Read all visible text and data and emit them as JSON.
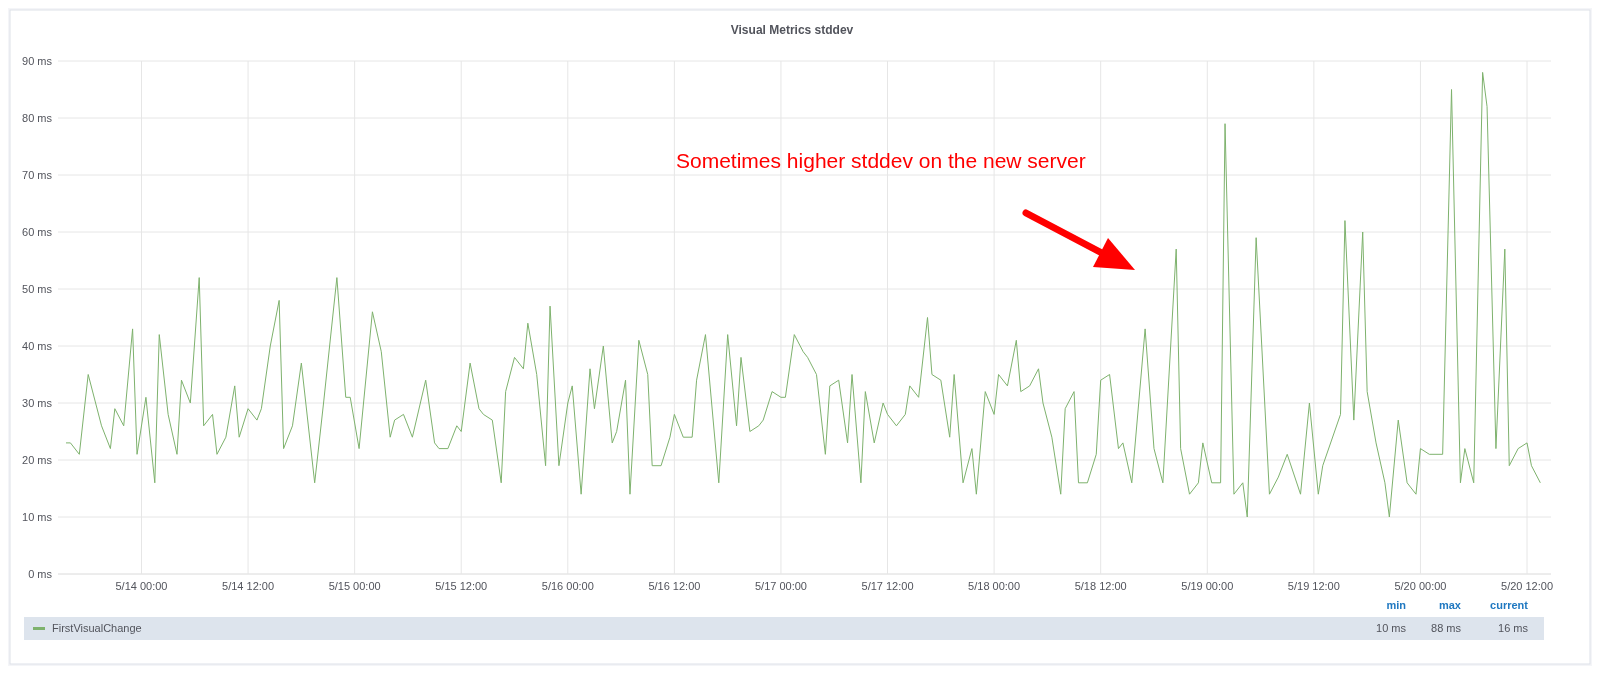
{
  "chart_data": {
    "type": "line",
    "title": "Visual Metrics stddev",
    "xlim": [
      "--05-13T14:36",
      "--05-20T14:42"
    ],
    "xticks": [
      {
        "value": "--05-14T00:00",
        "label": "5/14 00:00"
      },
      {
        "value": "--05-14T12:00",
        "label": "5/14 12:00"
      },
      {
        "value": "--05-15T00:00",
        "label": "5/15 00:00"
      },
      {
        "value": "--05-15T12:00",
        "label": "5/15 12:00"
      },
      {
        "value": "--05-16T00:00",
        "label": "5/16 00:00"
      },
      {
        "value": "--05-16T12:00",
        "label": "5/16 12:00"
      },
      {
        "value": "--05-17T00:00",
        "label": "5/17 00:00"
      },
      {
        "value": "--05-17T12:00",
        "label": "5/17 12:00"
      },
      {
        "value": "--05-18T00:00",
        "label": "5/18 00:00"
      },
      {
        "value": "--05-18T12:00",
        "label": "5/18 12:00"
      },
      {
        "value": "--05-19T00:00",
        "label": "5/19 00:00"
      },
      {
        "value": "--05-19T12:00",
        "label": "5/19 12:00"
      },
      {
        "value": "--05-20T00:00",
        "label": "5/20 00:00"
      },
      {
        "value": "--05-20T12:00",
        "label": "5/20 12:00"
      }
    ],
    "ylim": [
      0,
      90
    ],
    "yticks": [
      {
        "value": 0,
        "label": "0 ms"
      },
      {
        "value": 10,
        "label": "10 ms"
      },
      {
        "value": 20,
        "label": "20 ms"
      },
      {
        "value": 30,
        "label": "30 ms"
      },
      {
        "value": 40,
        "label": "40 ms"
      },
      {
        "value": 50,
        "label": "50 ms"
      },
      {
        "value": 60,
        "label": "60 ms"
      },
      {
        "value": 70,
        "label": "70 ms"
      },
      {
        "value": 80,
        "label": "80 ms"
      },
      {
        "value": 90,
        "label": "90 ms"
      }
    ],
    "grid": true,
    "legend": "bottom",
    "annotations": [
      "Sometimes higher stddev on the new server",
      "min",
      "max",
      "current",
      "10 ms",
      "88 ms",
      "16 ms"
    ],
    "series": [
      {
        "name": "FirstVisualChange",
        "color": "#7eb26d",
        "x": [
          "--05-13T15:30",
          "--05-13T16:00",
          "--05-13T17:00",
          "--05-13T18:00",
          "--05-13T19:30",
          "--05-13T20:30",
          "--05-13T21:00",
          "--05-13T22:00",
          "--05-13T23:00",
          "--05-13T23:30",
          "--05-14T00:30",
          "--05-14T01:30",
          "--05-14T02:00",
          "--05-14T03:00",
          "--05-14T04:00",
          "--05-14T04:30",
          "--05-14T05:30",
          "--05-14T06:30",
          "--05-14T07:00",
          "--05-14T08:00",
          "--05-14T08:30",
          "--05-14T09:30",
          "--05-14T10:30",
          "--05-14T11:00",
          "--05-14T12:00",
          "--05-14T13:00",
          "--05-14T13:30",
          "--05-14T14:30",
          "--05-14T15:30",
          "--05-14T16:00",
          "--05-14T17:00",
          "--05-14T18:00",
          "--05-14T19:30",
          "--05-14T20:30",
          "--05-14T22:00",
          "--05-14T23:00",
          "--05-14T23:30",
          "--05-15T00:30",
          "--05-15T02:00",
          "--05-15T03:00",
          "--05-15T04:00",
          "--05-15T04:30",
          "--05-15T05:30",
          "--05-15T06:30",
          "--05-15T08:00",
          "--05-15T09:00",
          "--05-15T09:30",
          "--05-15T10:30",
          "--05-15T11:30",
          "--05-15T12:00",
          "--05-15T13:00",
          "--05-15T14:00",
          "--05-15T14:30",
          "--05-15T15:30",
          "--05-15T16:30",
          "--05-15T17:00",
          "--05-15T18:00",
          "--05-15T19:00",
          "--05-15T19:30",
          "--05-15T20:30",
          "--05-15T21:30",
          "--05-15T22:00",
          "--05-15T23:00",
          "--05-16T00:00",
          "--05-16T00:30",
          "--05-16T01:30",
          "--05-16T02:30",
          "--05-16T03:00",
          "--05-16T04:00",
          "--05-16T05:00",
          "--05-16T05:30",
          "--05-16T06:30",
          "--05-16T07:00",
          "--05-16T08:00",
          "--05-16T09:00",
          "--05-16T09:30",
          "--05-16T10:30",
          "--05-16T11:30",
          "--05-16T12:00",
          "--05-16T13:00",
          "--05-16T14:00",
          "--05-16T14:30",
          "--05-16T15:30",
          "--05-16T17:00",
          "--05-16T18:00",
          "--05-16T19:00",
          "--05-16T19:30",
          "--05-16T20:30",
          "--05-16T21:30",
          "--05-16T22:00",
          "--05-16T23:00",
          "--05-17T00:00",
          "--05-17T00:30",
          "--05-17T01:30",
          "--05-17T02:30",
          "--05-17T03:00",
          "--05-17T04:00",
          "--05-17T05:00",
          "--05-17T05:30",
          "--05-17T06:30",
          "--05-17T07:30",
          "--05-17T08:00",
          "--05-17T09:00",
          "--05-17T09:30",
          "--05-17T10:30",
          "--05-17T11:30",
          "--05-17T12:00",
          "--05-17T13:00",
          "--05-17T14:00",
          "--05-17T14:30",
          "--05-17T15:30",
          "--05-17T16:30",
          "--05-17T17:00",
          "--05-17T18:00",
          "--05-17T19:00",
          "--05-17T19:30",
          "--05-17T20:30",
          "--05-17T21:30",
          "--05-17T22:00",
          "--05-17T23:00",
          "--05-18T00:00",
          "--05-18T00:30",
          "--05-18T01:30",
          "--05-18T02:30",
          "--05-18T03:00",
          "--05-18T04:00",
          "--05-18T05:00",
          "--05-18T05:30",
          "--05-18T06:30",
          "--05-18T07:30",
          "--05-18T08:00",
          "--05-18T09:00",
          "--05-18T09:30",
          "--05-18T10:30",
          "--05-18T11:30",
          "--05-18T12:00",
          "--05-18T13:00",
          "--05-18T14:00",
          "--05-18T14:30",
          "--05-18T15:30",
          "--05-18T17:00",
          "--05-18T18:00",
          "--05-18T19:00",
          "--05-18T20:30",
          "--05-18T21:00",
          "--05-18T22:00",
          "--05-18T23:00",
          "--05-18T23:30",
          "--05-19T00:30",
          "--05-19T01:30",
          "--05-19T02:00",
          "--05-19T03:00",
          "--05-19T04:00",
          "--05-19T04:30",
          "--05-19T05:30",
          "--05-19T07:00",
          "--05-19T08:00",
          "--05-19T09:00",
          "--05-19T10:30",
          "--05-19T11:30",
          "--05-19T12:30",
          "--05-19T13:00",
          "--05-19T15:00",
          "--05-19T15:30",
          "--05-19T16:30",
          "--05-19T17:30",
          "--05-19T18:00",
          "--05-19T19:00",
          "--05-19T20:00",
          "--05-19T20:30",
          "--05-19T21:30",
          "--05-19T22:30",
          "--05-19T23:30",
          "--05-20T00:00",
          "--05-20T01:00",
          "--05-20T02:30",
          "--05-20T03:30",
          "--05-20T04:30",
          "--05-20T05:00",
          "--05-20T06:00",
          "--05-20T07:00",
          "--05-20T07:30",
          "--05-20T08:30",
          "--05-20T09:30",
          "--05-20T10:00",
          "--05-20T11:00",
          "--05-20T12:00",
          "--05-20T12:30",
          "--05-20T13:30"
        ],
        "values": [
          23,
          23,
          21,
          35,
          26,
          22,
          29,
          26,
          43,
          21,
          31,
          16,
          42,
          28,
          21,
          34,
          30,
          52,
          26,
          28,
          21,
          24,
          33,
          24,
          29,
          27,
          29,
          40,
          48,
          22,
          26,
          37,
          16,
          30,
          52,
          31,
          31,
          22,
          46,
          39,
          24,
          27,
          28,
          24,
          34,
          23,
          22,
          22,
          26,
          25,
          37,
          29,
          28,
          27,
          16,
          32,
          38,
          36,
          44,
          35,
          19,
          47,
          19,
          30,
          33,
          14,
          36,
          29,
          40,
          23,
          25,
          34,
          14,
          41,
          35,
          19,
          19,
          24,
          28,
          24,
          24,
          34,
          42,
          16,
          42,
          26,
          38,
          25,
          26,
          27,
          32,
          31,
          31,
          42,
          39,
          38,
          35,
          21,
          33,
          34,
          23,
          35,
          16,
          32,
          23,
          30,
          28,
          26,
          28,
          33,
          31,
          45,
          35,
          34,
          24,
          35,
          16,
          22,
          14,
          32,
          28,
          35,
          33,
          41,
          32,
          33,
          36,
          30,
          24,
          14,
          29,
          32,
          16,
          16,
          21,
          34,
          35,
          22,
          23,
          16,
          43,
          22,
          16,
          57,
          22,
          14,
          16,
          23,
          16,
          16,
          79,
          14,
          16,
          10,
          59,
          14,
          17,
          21,
          14,
          30,
          14,
          19,
          28,
          62,
          27,
          60,
          32,
          23,
          16,
          10,
          27,
          16,
          14,
          22,
          21,
          21,
          85,
          16,
          22,
          16,
          88,
          82,
          22,
          57,
          19,
          22,
          23,
          19,
          16
        ]
      }
    ]
  }
}
